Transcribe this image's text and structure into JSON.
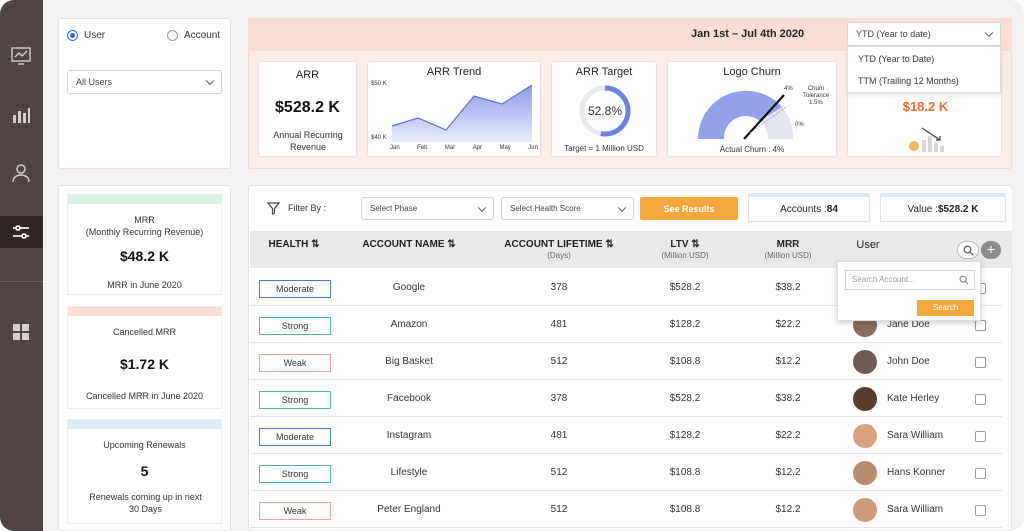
{
  "sidebar": {
    "items": [
      "chart-icon",
      "bar-chart-icon",
      "user-icon",
      "sliders-icon",
      "grid-icon"
    ]
  },
  "filters": {
    "radio_user": "User",
    "radio_account": "Account",
    "users_select": "All Users"
  },
  "header": {
    "date_range": "Jan 1st – Jul 4th 2020",
    "period_selected": "YTD (Year to date)",
    "period_options": [
      "YTD (Year to Date)",
      "TTM (Trailing 12 Months)"
    ]
  },
  "kpis": {
    "arr": {
      "title": "ARR",
      "value": "$528.2 K",
      "caption": "Annual Recurring Revenue"
    },
    "arr_trend": {
      "title": "ARR Trend",
      "y_top": "$50 K",
      "y_bottom": "$40 K",
      "months": [
        "Jan",
        "Feb",
        "Mar",
        "Apr",
        "May",
        "Jun"
      ]
    },
    "arr_target": {
      "title": "ARR Target",
      "percent": "52.8%",
      "caption": "Target = 1 Million USD",
      "progress": 0.528
    },
    "logo_churn": {
      "title": "Logo Churn",
      "label_4": "4%",
      "label_tol": "Churn Tolerance 1.5%",
      "label_0": "0%",
      "caption": "Actual Churn : 4%"
    },
    "hidden": {
      "value": "$18.2 K"
    }
  },
  "left_cards": {
    "mrr": {
      "title": "MRR\n(Monthly Recurring Revenue)",
      "value": "$48.2 K",
      "caption": "MRR in June 2020",
      "color": "#d9f1e2"
    },
    "cancelled": {
      "title": "Cancelled MRR",
      "value": "$1.72 K",
      "caption": "Cancelled MRR in June 2020",
      "color": "#f9ddd5"
    },
    "renewals": {
      "title": "Upcoming Renewals",
      "value": "5",
      "caption": "Renewals coming up in next 30 Days",
      "color": "#dbe9f6"
    }
  },
  "table_filters": {
    "filter_label": "Filter By :",
    "phase": "Select Phase",
    "health": "Select Health Score",
    "see_results": "See Results",
    "accounts": "Accounts : ",
    "accounts_count": "84",
    "value": "Value : ",
    "value_amount": "$528.2 K"
  },
  "table": {
    "headers": {
      "health": "HEALTH ⇅",
      "account": "ACCOUNT NAME ⇅",
      "lifetime": "ACCOUNT LIFETIME ⇅",
      "lifetime_sub": "(Days)",
      "ltv": "LTV ⇅",
      "ltv_sub": "(Million USD)",
      "mrr": "MRR",
      "mrr_sub": "(Million USD)",
      "user": "User"
    },
    "rows": [
      {
        "health": "Moderate",
        "health_color": "#4a77d6",
        "name": "Google",
        "lifetime": "378",
        "ltv": "$528.2",
        "mrr": "$38.2",
        "user": "",
        "avatar": "#c9a589"
      },
      {
        "health": "Strong",
        "health_color": "#4eb9a6",
        "name": "Amazon",
        "lifetime": "481",
        "ltv": "$128.2",
        "mrr": "$22.2",
        "user": "Jane Doe",
        "avatar": "#8b6b5a"
      },
      {
        "health": "Weak",
        "health_color": "#f2a59a",
        "name": "Big Basket",
        "lifetime": "512",
        "ltv": "$108.8",
        "mrr": "$12.2",
        "user": "John Doe",
        "avatar": "#6f5b52"
      },
      {
        "health": "Strong",
        "health_color": "#4eb9a6",
        "name": "Facebook",
        "lifetime": "378",
        "ltv": "$528.2",
        "mrr": "$38.2",
        "user": "Kate Herley",
        "avatar": "#5b3d2e"
      },
      {
        "health": "Moderate",
        "health_color": "#4a77d6",
        "name": "Instagram",
        "lifetime": "481",
        "ltv": "$128.2",
        "mrr": "$22.2",
        "user": "Sara William",
        "avatar": "#d9a07e"
      },
      {
        "health": "Strong",
        "health_color": "#4eb9a6",
        "name": "Lifestyle",
        "lifetime": "512",
        "ltv": "$108.8",
        "mrr": "$12.2",
        "user": "Hans Konner",
        "avatar": "#b88a6e"
      },
      {
        "health": "Weak",
        "health_color": "#f2a59a",
        "name": "Peter England",
        "lifetime": "512",
        "ltv": "$108.8",
        "mrr": "$12.2",
        "user": "Sara William",
        "avatar": "#cf9a7a"
      }
    ]
  },
  "search_popup": {
    "placeholder": "Search Account...",
    "button": "Search"
  }
}
